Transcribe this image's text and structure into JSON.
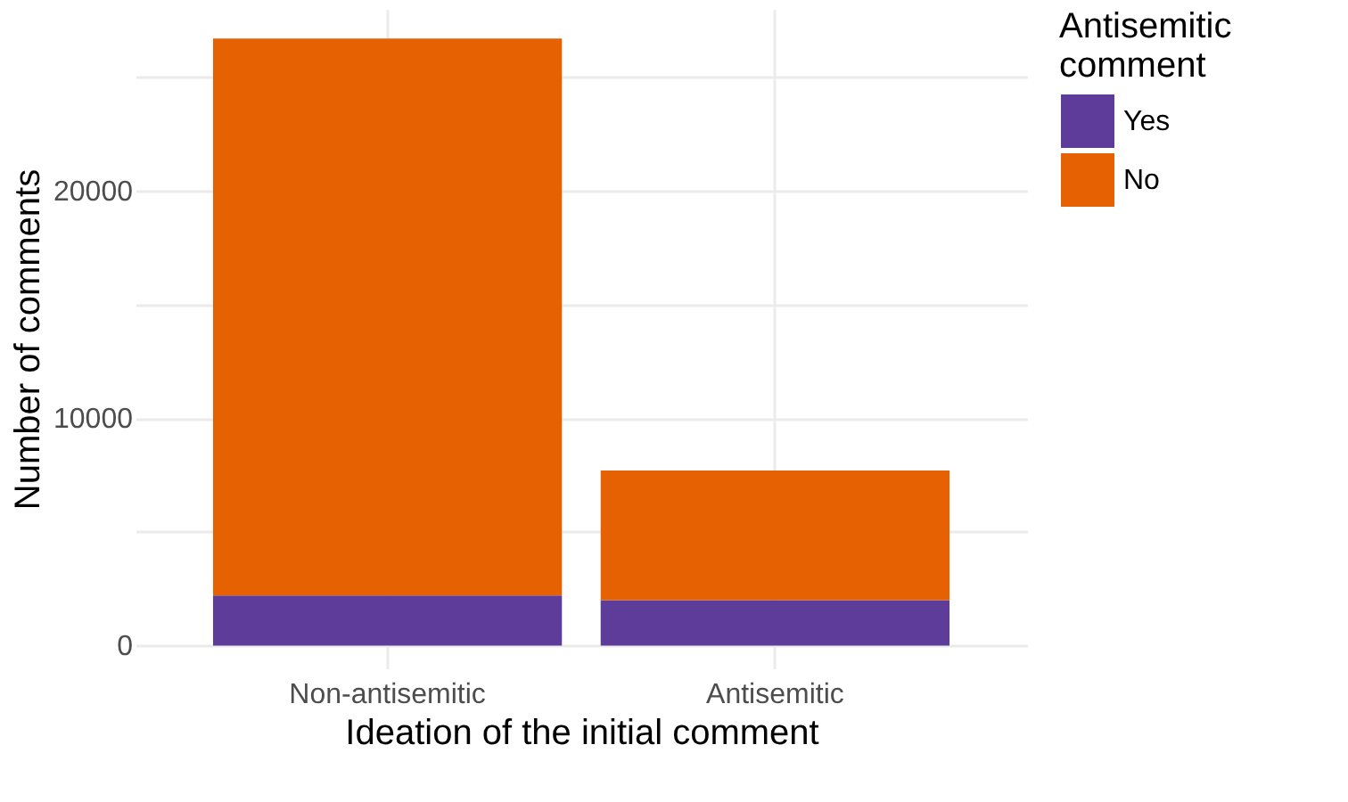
{
  "chart_data": {
    "type": "bar",
    "stacked": true,
    "xlabel": "Ideation of the initial comment",
    "ylabel": "Number of comments",
    "legend_title": "Antisemitic comment",
    "categories": [
      "Non-antisemitic",
      "Antisemitic"
    ],
    "series": [
      {
        "name": "Yes",
        "color": "#5e3c99",
        "values": [
          2200,
          2000
        ]
      },
      {
        "name": "No",
        "color": "#e66101",
        "values": [
          24500,
          5700
        ]
      }
    ],
    "ylim": [
      -1000,
      28000
    ],
    "yticks": [
      0,
      {
        "value": 5000,
        "label": null
      },
      10000,
      {
        "value": 15000,
        "label": null
      },
      20000,
      {
        "value": 25000,
        "label": null
      }
    ],
    "grid": true,
    "legend": "right"
  }
}
